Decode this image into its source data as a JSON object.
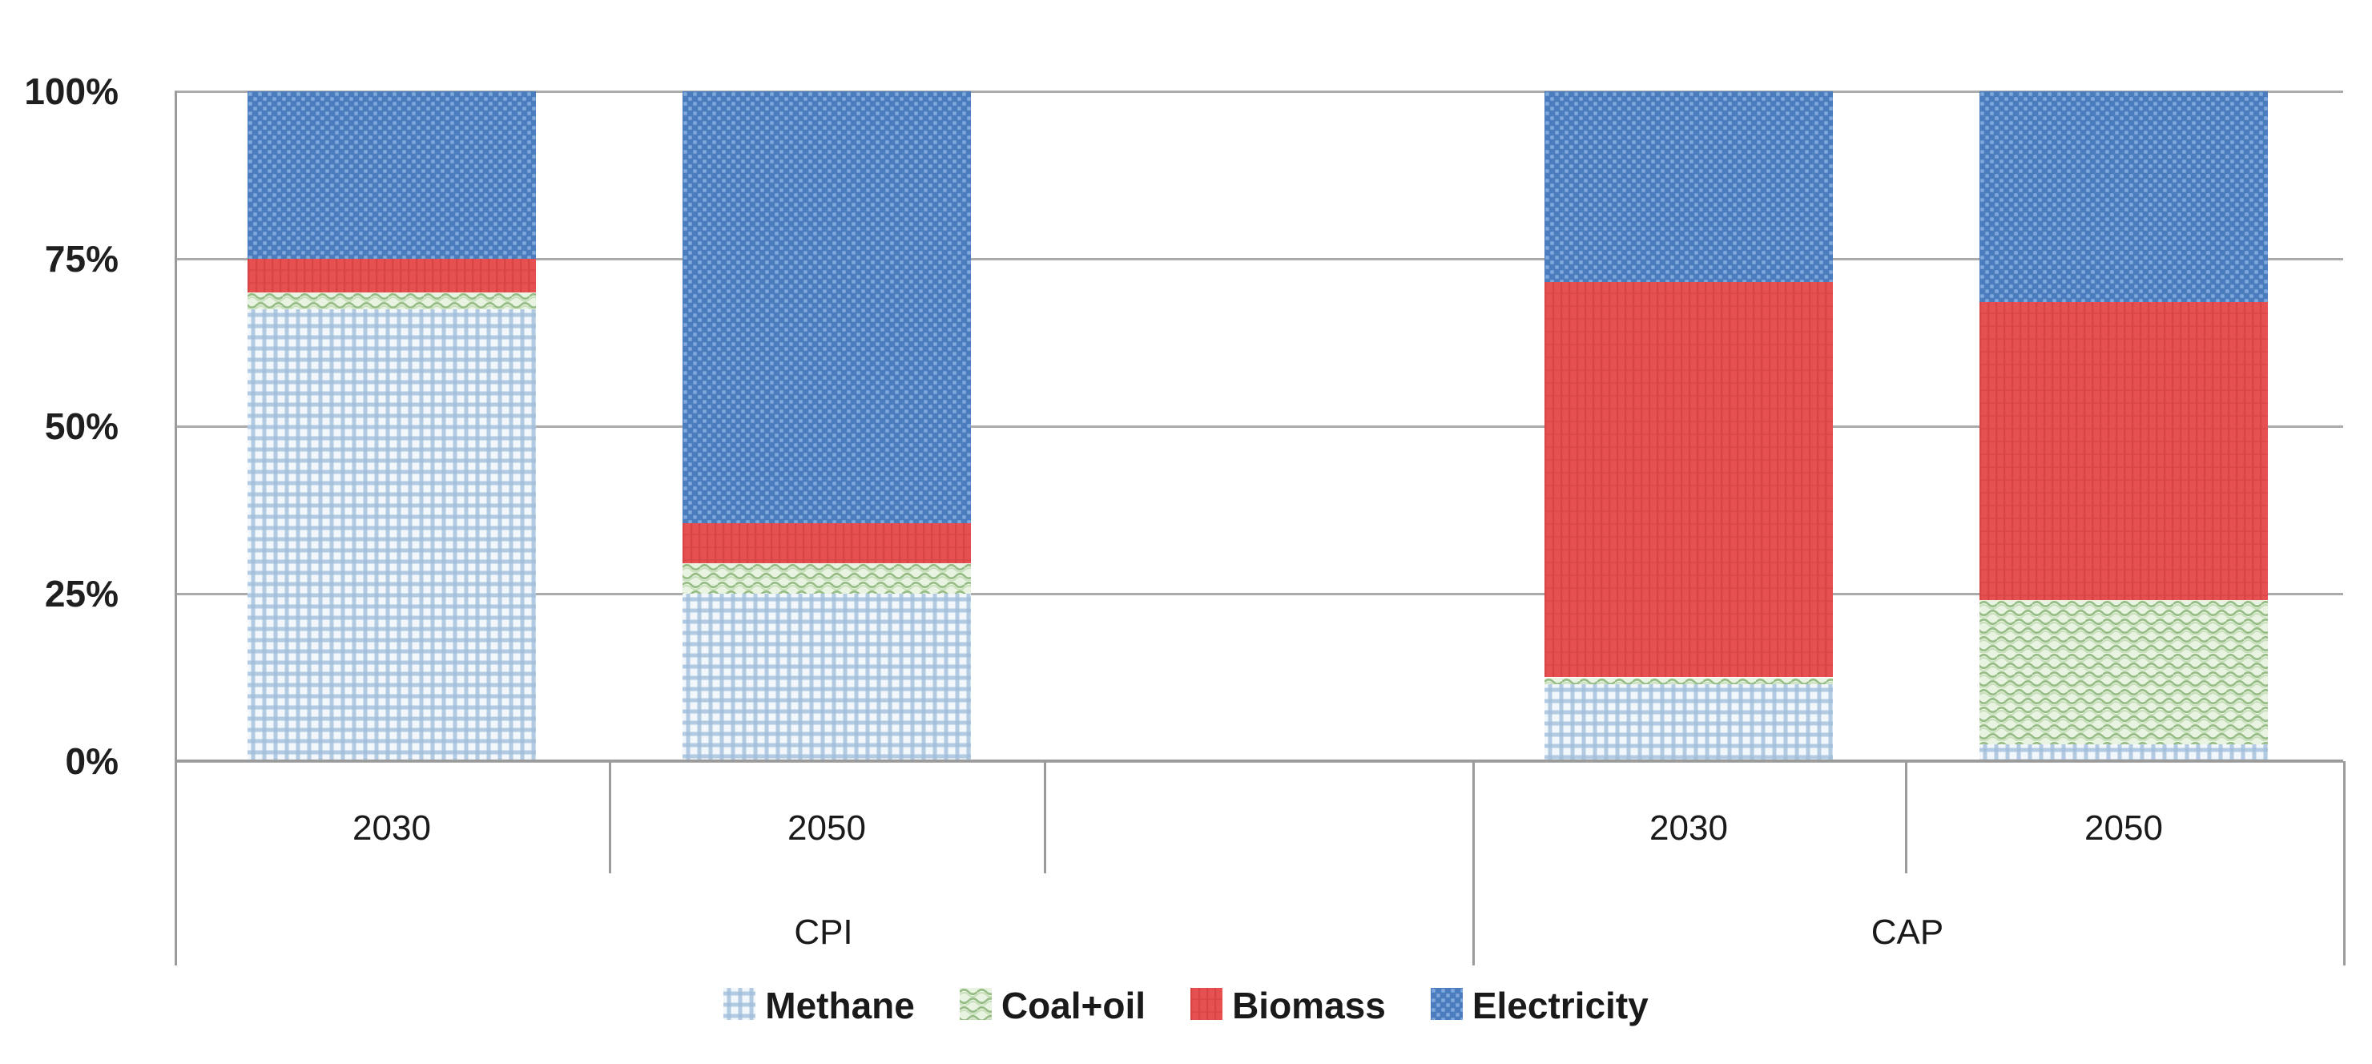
{
  "chart_data": {
    "type": "bar",
    "stacked": true,
    "percent_stacked": true,
    "title": "",
    "xlabel": "",
    "ylabel": "",
    "ylim": [
      0,
      100
    ],
    "grid": true,
    "legend_position": "bottom",
    "ytick_labels_top_to_bottom": [
      "100%",
      "75%",
      "50%",
      "25%",
      "0%"
    ],
    "groups": [
      "CPI",
      "CAP"
    ],
    "categories": [
      "2030",
      "2050",
      "2030",
      "2050"
    ],
    "series": [
      {
        "name": "Methane",
        "pattern": "gingham-grid",
        "color": "#9fbcd9",
        "values": [
          67.5,
          25,
          11.5,
          2.5
        ]
      },
      {
        "name": "Coal+oil",
        "pattern": "green-waves",
        "color": "#96bd86",
        "values": [
          2.5,
          4.5,
          1,
          21.5
        ]
      },
      {
        "name": "Biomass",
        "pattern": "red-stripes",
        "color": "#e75050",
        "values": [
          5,
          6,
          59,
          44.5
        ]
      },
      {
        "name": "Electricity",
        "pattern": "blue-dots",
        "color": "#4b7dbe",
        "values": [
          25,
          64.5,
          28.5,
          31.5
        ]
      }
    ]
  },
  "colors": {
    "gridline": "#ababab",
    "axis": "#9b9b9b",
    "text": "#1a1a1a",
    "background": "#ffffff",
    "methane_bg": "#f1f7fb",
    "methane_line": "#9fbcd9",
    "coaloil_bg": "#e9f3e1",
    "coaloil_wave": "#96bd86",
    "biomass_base": "#e75050",
    "biomass_stripe": "#d84444",
    "electricity_base": "#4b7dbe",
    "electricity_dot": "#7fa9dc"
  }
}
